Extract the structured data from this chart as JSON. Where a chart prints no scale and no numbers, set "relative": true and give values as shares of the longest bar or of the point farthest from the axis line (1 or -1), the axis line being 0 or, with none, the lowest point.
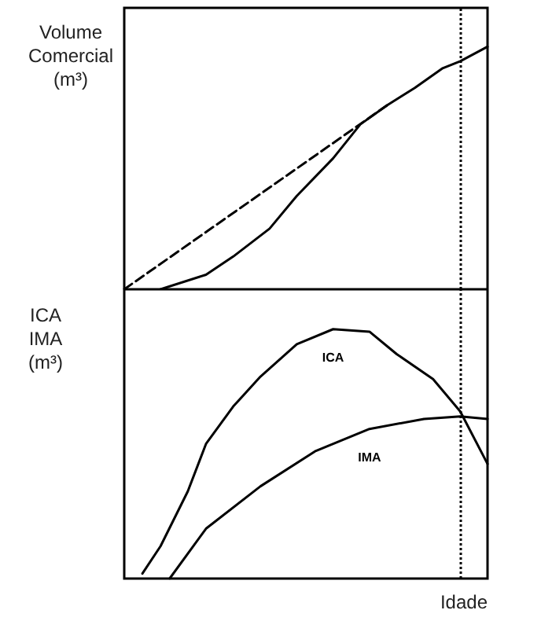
{
  "chart_data": [
    {
      "type": "line",
      "relative": true,
      "ylabel": "Volume\nComercial\n(m³)",
      "marker": "none",
      "categories": [
        null,
        null,
        null,
        null,
        null,
        null,
        null,
        null,
        null,
        null,
        null,
        null,
        null,
        null,
        null,
        null,
        null,
        null,
        null,
        null,
        null,
        null,
        null,
        null,
        null,
        null,
        null,
        null,
        null,
        null,
        null,
        null,
        null,
        null,
        null,
        null,
        null,
        null,
        null,
        null,
        null
      ],
      "series": [
        {
          "color": "#000000",
          "line_style": "solid",
          "values": [
            null,
            null,
            null,
            null,
            0,
            null,
            null,
            null,
            null,
            0.06,
            null,
            null,
            0.135,
            null,
            null,
            null,
            0.25,
            null,
            null,
            0.385,
            null,
            null,
            null,
            0.54,
            null,
            null,
            0.68,
            null,
            null,
            0.76,
            null,
            null,
            0.83,
            null,
            null,
            0.91,
            null,
            0.94,
            null,
            null,
            1.0
          ]
        },
        {
          "color": "#000000",
          "line_style": "dashed",
          "values": [
            0,
            null,
            null,
            null,
            null,
            null,
            null,
            null,
            null,
            null,
            null,
            null,
            null,
            null,
            null,
            null,
            null,
            null,
            null,
            null,
            null,
            null,
            null,
            null,
            null,
            null,
            null,
            null,
            null,
            0.76,
            null,
            null,
            null,
            null,
            null,
            null,
            null,
            null,
            null,
            null,
            null
          ]
        }
      ]
    },
    {
      "type": "line",
      "relative": true,
      "ylabel": "ICA\nIMA\n(m³)",
      "xlabel": "Idade",
      "marker": "none",
      "categories": [
        null,
        null,
        null,
        null,
        null,
        null,
        null,
        null,
        null,
        null,
        null,
        null,
        null,
        null,
        null,
        null,
        null,
        null,
        null,
        null,
        null,
        null,
        null,
        null,
        null,
        null,
        null,
        null,
        null,
        null,
        null,
        null,
        null,
        null,
        null,
        null,
        null,
        null,
        null,
        null,
        null
      ],
      "series": [
        {
          "name": "ICA",
          "color": "#000000",
          "line_style": "solid",
          "values": [
            null,
            null,
            0.02,
            null,
            0.13,
            null,
            null,
            0.35,
            null,
            0.54,
            null,
            null,
            0.69,
            null,
            null,
            0.81,
            null,
            null,
            null,
            0.94,
            null,
            null,
            null,
            1.0,
            null,
            null,
            null,
            0.99,
            null,
            null,
            0.9,
            null,
            null,
            null,
            0.8,
            null,
            null,
            0.67,
            null,
            null,
            0.46
          ]
        },
        {
          "name": "IMA",
          "color": "#000000",
          "line_style": "solid",
          "values": [
            null,
            null,
            null,
            null,
            null,
            0,
            null,
            null,
            null,
            0.2,
            null,
            null,
            null,
            null,
            null,
            0.37,
            null,
            null,
            null,
            null,
            null,
            0.51,
            null,
            null,
            null,
            null,
            null,
            0.6,
            null,
            null,
            null,
            null,
            null,
            0.64,
            null,
            null,
            null,
            0.65,
            null,
            null,
            0.64
          ]
        }
      ]
    }
  ]
}
